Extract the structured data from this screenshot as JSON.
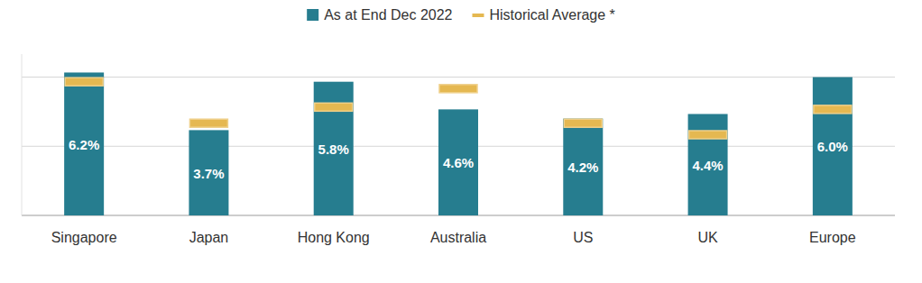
{
  "chart_data": {
    "type": "bar",
    "categories": [
      "Singapore",
      "Japan",
      "Hong Kong",
      "Australia",
      "US",
      "UK",
      "Europe"
    ],
    "series": [
      {
        "name": "As at End Dec 2022",
        "type": "bar",
        "color": "#267d8f",
        "values": [
          6.2,
          3.7,
          5.8,
          4.6,
          4.2,
          4.4,
          6.0
        ],
        "value_labels": [
          "6.2%",
          "3.7%",
          "5.8%",
          "4.6%",
          "4.2%",
          "4.4%",
          "6.0%"
        ]
      },
      {
        "name": "Historical Average *",
        "type": "scatter",
        "marker": "dash",
        "color": "#e5b851",
        "values": [
          5.8,
          4.0,
          4.7,
          5.5,
          4.0,
          3.5,
          4.6
        ]
      }
    ],
    "ylim": [
      0,
      7
    ],
    "yticks": [
      0,
      3,
      6
    ],
    "grid": true,
    "legend": "top",
    "data_labels": true,
    "tick_labels": "x"
  }
}
